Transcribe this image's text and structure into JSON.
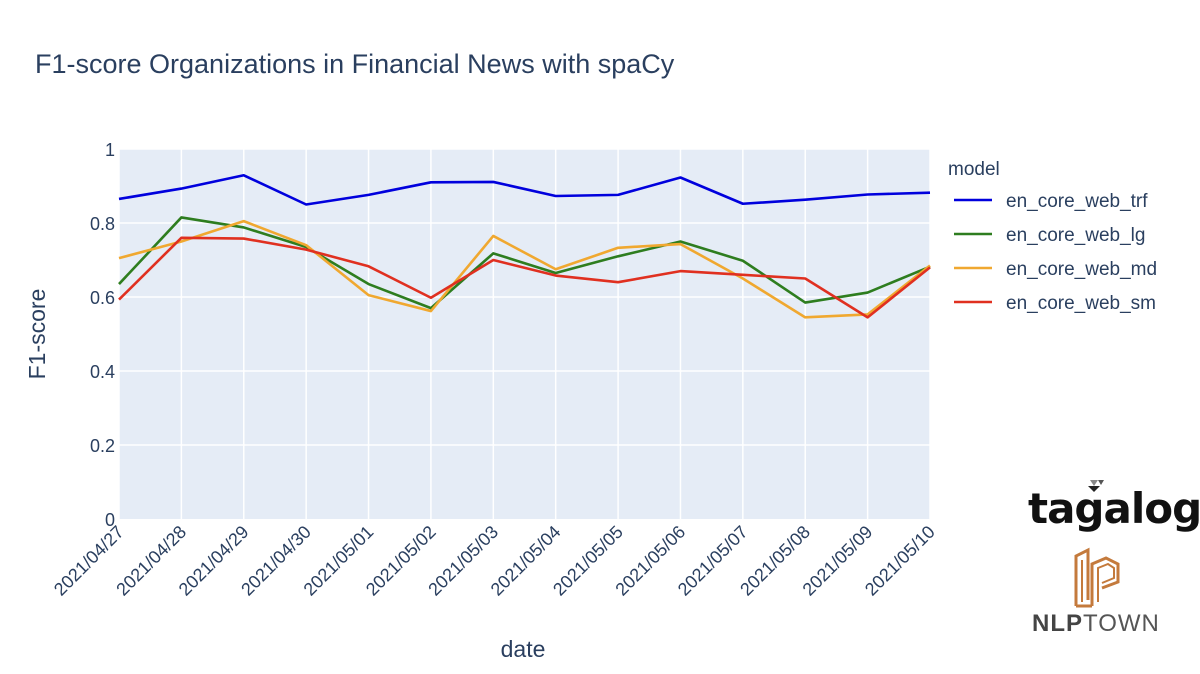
{
  "chart_data": {
    "type": "line",
    "title": "F1-score Organizations in Financial News with spaCy",
    "xlabel": "date",
    "ylabel": "F1-score",
    "ylim": [
      0,
      1
    ],
    "y_ticks": [
      "0",
      "0.2",
      "0.4",
      "0.6",
      "0.8",
      "1"
    ],
    "y_tick_values": [
      0,
      0.2,
      0.4,
      0.6,
      0.8,
      1
    ],
    "x": [
      "2021/04/27",
      "2021/04/28",
      "2021/04/29",
      "2021/04/30",
      "2021/05/01",
      "2021/05/02",
      "2021/05/03",
      "2021/05/04",
      "2021/05/05",
      "2021/05/06",
      "2021/05/07",
      "2021/05/08",
      "2021/05/09",
      "2021/05/10"
    ],
    "grid": true,
    "legend_title": "model",
    "legend_position": "right",
    "series": [
      {
        "name": "en_core_web_trf",
        "color": "#0000dd",
        "values": [
          0.865,
          0.893,
          0.929,
          0.85,
          0.876,
          0.91,
          0.911,
          0.873,
          0.876,
          0.923,
          0.852,
          0.863,
          0.877,
          0.882
        ]
      },
      {
        "name": "en_core_web_lg",
        "color": "#2e7d1f",
        "values": [
          0.635,
          0.815,
          0.788,
          0.735,
          0.635,
          0.57,
          0.718,
          0.665,
          0.71,
          0.75,
          0.698,
          0.585,
          0.612,
          0.682
        ]
      },
      {
        "name": "en_core_web_md",
        "color": "#f0a830",
        "values": [
          0.705,
          0.75,
          0.805,
          0.74,
          0.605,
          0.562,
          0.765,
          0.675,
          0.733,
          0.743,
          0.65,
          0.545,
          0.553,
          0.685
        ]
      },
      {
        "name": "en_core_web_sm",
        "color": "#e03020",
        "values": [
          0.593,
          0.76,
          0.758,
          0.728,
          0.683,
          0.598,
          0.7,
          0.658,
          0.64,
          0.67,
          0.66,
          0.65,
          0.545,
          0.68
        ]
      }
    ]
  },
  "logos": {
    "tagalog": "tagalog",
    "nlptown_bold": "NLP",
    "nlptown_rest": "TOWN"
  }
}
